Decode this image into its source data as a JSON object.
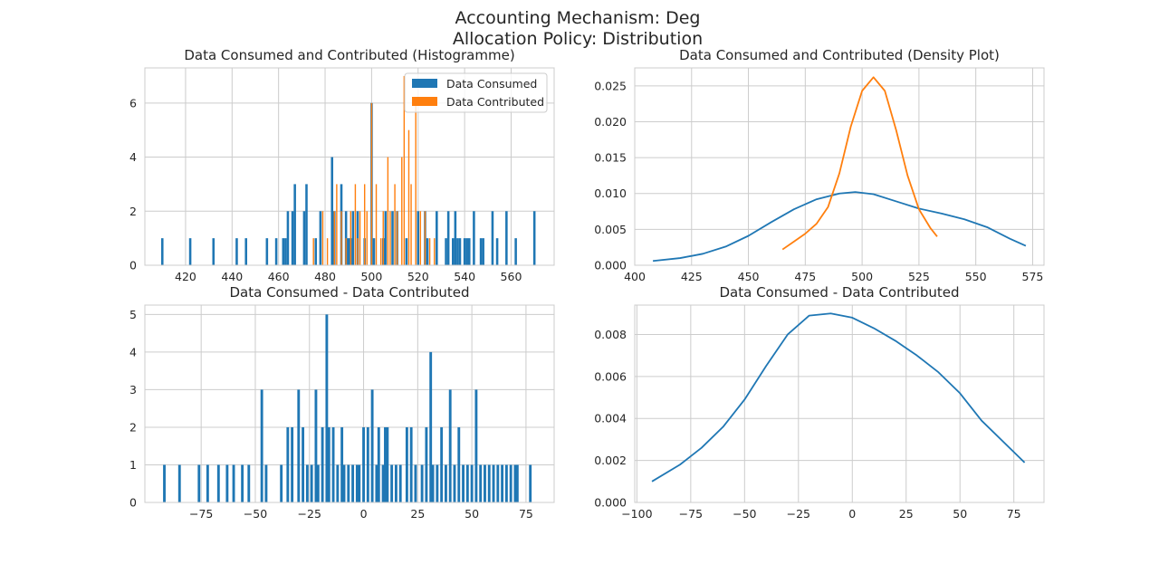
{
  "figure": {
    "suptitle_line1": "Accounting Mechanism: Deg",
    "suptitle_line2": "Allocation Policy: Distribution"
  },
  "colors": {
    "consumed": "#1f77b4",
    "contributed": "#ff7f0e",
    "grid": "#cccccc",
    "text": "#262626"
  },
  "chart_data": [
    {
      "type": "bar",
      "title": "Data Consumed and Contributed (Histogramme)",
      "xlabel": "",
      "ylabel": "",
      "xlim": [
        402.5,
        578.5
      ],
      "ylim": [
        0,
        7.3
      ],
      "xticks": [
        420,
        440,
        460,
        480,
        500,
        520,
        540,
        560
      ],
      "yticks": [
        0,
        2,
        4,
        6
      ],
      "grid": true,
      "legend_position": "top-right",
      "series": [
        {
          "name": "Data Consumed",
          "color": "#1f77b4",
          "bin_width": 1.0,
          "x": [
            410,
            422,
            432,
            442,
            446,
            455,
            459,
            462,
            463,
            464,
            466,
            467,
            471,
            472,
            476,
            478,
            483,
            484,
            487,
            489,
            490,
            491,
            492,
            494,
            497,
            500,
            501,
            505,
            506,
            509,
            511,
            515,
            520,
            523,
            524,
            528,
            532,
            533,
            535,
            536,
            537,
            538,
            540,
            541,
            542,
            544,
            547,
            548,
            552,
            554,
            558,
            562,
            570
          ],
          "values": [
            1,
            1,
            1,
            1,
            1,
            1,
            1,
            1,
            1,
            2,
            2,
            3,
            2,
            3,
            1,
            2,
            4,
            2,
            3,
            2,
            1,
            1,
            2,
            2,
            1,
            6,
            1,
            1,
            2,
            2,
            2,
            1,
            2,
            2,
            1,
            2,
            1,
            2,
            1,
            2,
            1,
            1,
            1,
            1,
            1,
            2,
            1,
            1,
            2,
            1,
            2,
            1,
            2
          ]
        },
        {
          "name": "Data Contributed",
          "color": "#ff7f0e",
          "bin_width": 0.55,
          "x": [
            475,
            479,
            481,
            484,
            485,
            487,
            489,
            491,
            493,
            494,
            495,
            497,
            498,
            500,
            502,
            504,
            505,
            507,
            508,
            510,
            511,
            513,
            514,
            516,
            517,
            519,
            521,
            523,
            525,
            527
          ],
          "values": [
            1,
            2,
            1,
            2,
            3,
            2,
            1,
            2,
            3,
            1,
            2,
            3,
            2,
            6,
            3,
            1,
            2,
            4,
            2,
            3,
            2,
            4,
            7,
            5,
            3,
            6,
            2,
            2,
            1,
            1
          ]
        }
      ]
    },
    {
      "type": "line",
      "title": "Data Consumed and Contributed (Density Plot)",
      "xlabel": "",
      "ylabel": "",
      "xlim": [
        400,
        580
      ],
      "ylim": [
        0,
        0.0275
      ],
      "xticks": [
        400,
        425,
        450,
        475,
        500,
        525,
        550,
        575
      ],
      "yticks": [
        0.0,
        0.005,
        0.01,
        0.015,
        0.02,
        0.025
      ],
      "ytick_labels": [
        "0.000",
        "0.005",
        "0.010",
        "0.015",
        "0.020",
        "0.025"
      ],
      "grid": true,
      "series": [
        {
          "color": "#1f77b4",
          "x": [
            408,
            420,
            430,
            440,
            450,
            460,
            470,
            480,
            490,
            497,
            505,
            515,
            525,
            535,
            545,
            555,
            565,
            572
          ],
          "y": [
            0.0006,
            0.001,
            0.0016,
            0.0026,
            0.0041,
            0.006,
            0.0078,
            0.0092,
            0.01,
            0.0102,
            0.0099,
            0.0089,
            0.0079,
            0.0072,
            0.0064,
            0.0053,
            0.0037,
            0.0027
          ]
        },
        {
          "color": "#ff7f0e",
          "x": [
            465,
            470,
            475,
            480,
            485,
            490,
            495,
            500,
            505,
            510,
            515,
            520,
            525,
            530,
            533
          ],
          "y": [
            0.0022,
            0.0033,
            0.0044,
            0.0058,
            0.0081,
            0.0128,
            0.0193,
            0.0243,
            0.0262,
            0.0243,
            0.0188,
            0.0125,
            0.0078,
            0.0052,
            0.004
          ]
        }
      ]
    },
    {
      "type": "bar",
      "title": "Data Consumed - Data Contributed",
      "xlabel": "",
      "ylabel": "",
      "xlim": [
        -101,
        88
      ],
      "ylim": [
        0,
        5.25
      ],
      "xticks": [
        -75,
        -50,
        -25,
        0,
        25,
        50,
        75
      ],
      "xtick_labels": [
        "−75",
        "−50",
        "−25",
        "0",
        "25",
        "50",
        "75"
      ],
      "yticks": [
        0,
        1,
        2,
        3,
        4,
        5
      ],
      "grid": true,
      "bin_width": 1.2,
      "x": [
        -92,
        -85,
        -76,
        -72,
        -67,
        -63,
        -60,
        -56,
        -53,
        -47,
        -45,
        -38,
        -35,
        -33,
        -30,
        -28,
        -26,
        -24,
        -22,
        -21,
        -19,
        -17,
        -16,
        -14,
        -12,
        -10,
        -9,
        -7,
        -5,
        -3,
        -2,
        0,
        2,
        4,
        6,
        7,
        9,
        10,
        11,
        13,
        15,
        17,
        20,
        22,
        24,
        27,
        29,
        31,
        32,
        34,
        36,
        38,
        40,
        42,
        44,
        46,
        48,
        50,
        52,
        54,
        56,
        58,
        60,
        62,
        64,
        66,
        68,
        70,
        71,
        77
      ],
      "values": [
        1,
        1,
        1,
        1,
        1,
        1,
        1,
        1,
        1,
        3,
        1,
        1,
        2,
        2,
        3,
        2,
        1,
        1,
        3,
        1,
        2,
        5,
        2,
        2,
        1,
        2,
        1,
        1,
        1,
        1,
        1,
        2,
        2,
        3,
        1,
        2,
        1,
        2,
        2,
        1,
        1,
        1,
        2,
        2,
        1,
        1,
        2,
        4,
        1,
        1,
        2,
        1,
        3,
        1,
        2,
        1,
        1,
        1,
        3,
        1,
        1,
        1,
        1,
        1,
        1,
        1,
        1,
        1,
        1,
        1
      ]
    },
    {
      "type": "line",
      "title": "Data Consumed - Data Contributed",
      "xlabel": "",
      "ylabel": "",
      "xlim": [
        -101,
        89
      ],
      "ylim": [
        0,
        0.0094
      ],
      "xticks": [
        -100,
        -75,
        -50,
        -25,
        0,
        25,
        50,
        75
      ],
      "xtick_labels": [
        "−100",
        "−75",
        "−50",
        "−25",
        "0",
        "25",
        "50",
        "75"
      ],
      "yticks": [
        0.0,
        0.002,
        0.004,
        0.006,
        0.008
      ],
      "ytick_labels": [
        "0.000",
        "0.002",
        "0.004",
        "0.006",
        "0.008"
      ],
      "grid": true,
      "series": [
        {
          "color": "#1f77b4",
          "x": [
            -93,
            -80,
            -70,
            -60,
            -50,
            -40,
            -30,
            -20,
            -10,
            0,
            10,
            20,
            30,
            40,
            50,
            60,
            70,
            80
          ],
          "y": [
            0.001,
            0.0018,
            0.0026,
            0.0036,
            0.0049,
            0.0065,
            0.008,
            0.0089,
            0.009,
            0.0088,
            0.0083,
            0.0077,
            0.007,
            0.0062,
            0.0052,
            0.0039,
            0.0029,
            0.0019
          ]
        }
      ]
    }
  ]
}
